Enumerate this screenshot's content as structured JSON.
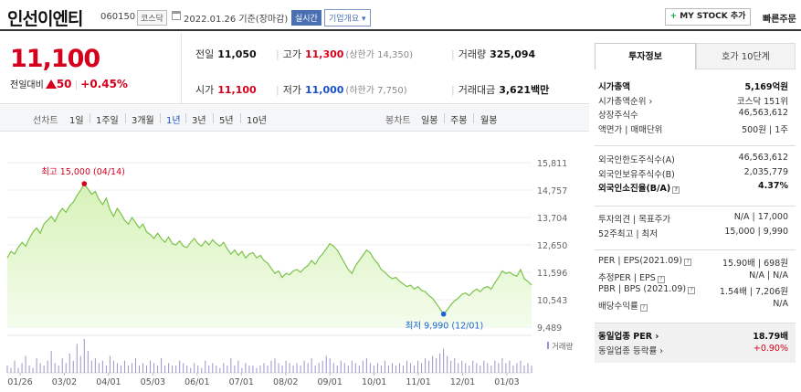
{
  "header": {
    "company": "인선이엔티",
    "code": "060150",
    "market": "코스닥",
    "date": "2022.01.26 기준(장마감)",
    "realtime": "실시간",
    "corp_info": "기업개요",
    "mystock_label": "MY STOCK 추가",
    "quick_order": "빠른주문"
  },
  "summary": {
    "price": "11,100",
    "change_label": "전일대비",
    "change_value": "50",
    "change_pct": "+0.45%",
    "prev_label": "전일",
    "prev_value": "11,050",
    "high_label": "고가",
    "high_value": "11,300",
    "upper_limit": "(상한가 14,350)",
    "volume_label": "거래량",
    "volume_value": "325,094",
    "open_label": "시가",
    "open_value": "11,100",
    "low_label": "저가",
    "low_value": "11,000",
    "lower_limit": "(하한가 7,750)",
    "amount_label": "거래대금",
    "amount_value": "3,621백만"
  },
  "periods": {
    "line_label": "선차트",
    "items": [
      "1일",
      "1주일",
      "3개월",
      "1년",
      "3년",
      "5년",
      "10년"
    ],
    "active": "1년",
    "candle_label": "봉차트",
    "candle_items": [
      "일봉",
      "주봉",
      "월봉"
    ]
  },
  "info": {
    "tab_active": "투자정보",
    "tab_other": "호가 10단계",
    "rows1": [
      {
        "k": "시가총액",
        "v": "5,169억원",
        "bold": true
      },
      {
        "k": "시가총액순위 ›",
        "v": "코스닥 151위"
      },
      {
        "k": "상장주식수",
        "v": "46,563,612"
      },
      {
        "k": "액면가 | 매매단위",
        "v": "500원 | 1주"
      }
    ],
    "rows2": [
      {
        "k": "외국인한도주식수(A)",
        "v": "46,563,612"
      },
      {
        "k": "외국인보유주식수(B)",
        "v": "2,035,779"
      },
      {
        "k": "외국인소진율(B/A)",
        "v": "4.37%",
        "bold": true,
        "q": true
      }
    ],
    "rows3": [
      {
        "k": "투자의견 | 목표주가",
        "v": "N/A | 17,000"
      },
      {
        "k": "52주최고 | 최저",
        "v": "15,000 | 9,990"
      }
    ],
    "rows4": [
      {
        "k": "PER | EPS(2021.09)",
        "v": "15.90배 | 698원",
        "q": true
      },
      {
        "k": "추정PER | EPS",
        "v": "N/A | N/A",
        "q": true
      },
      {
        "k": "PBR | BPS (2021.09)",
        "v": "1.54배 | 7,206원",
        "q": true
      },
      {
        "k": "배당수익률",
        "v": "N/A",
        "q": true
      }
    ],
    "rows5": [
      {
        "k": "동일업종 PER ›",
        "v": "18.79배",
        "bold": true
      },
      {
        "k": "동일업종 등락률 ›",
        "v": "+0.90%",
        "red": true
      }
    ]
  },
  "chart_data": {
    "type": "area",
    "y_ticks": [
      9489,
      10543,
      11596,
      12650,
      13704,
      14757,
      15811
    ],
    "ylim": [
      9489,
      15811
    ],
    "x_labels": [
      "01/26",
      "03/02",
      "04/01",
      "05/03",
      "06/01",
      "07/01",
      "08/02",
      "09/01",
      "10/01",
      "11/01",
      "12/01",
      "01/03"
    ],
    "high_annotation": "최고 15,000 (04/14)",
    "low_annotation": "최저 9,990 (12/01)",
    "volume_label": "거래량",
    "colors": {
      "line": "#7bc34a",
      "fill_top": "#d7f2b8",
      "fill_bottom": "#f4fcec",
      "volume": "#9b93c9",
      "high": "#d6001c",
      "low": "#1a64d6"
    },
    "series": [
      {
        "values": [
          12150,
          12400,
          12300,
          12550,
          12750,
          12600,
          12900,
          13150,
          13300,
          13100,
          13450,
          13600,
          13750,
          13550,
          13850,
          14050,
          13900,
          14150,
          14300,
          14550,
          14750,
          15000,
          14800,
          14600,
          14700,
          14400,
          14200,
          14450,
          14000,
          13750,
          14050,
          13850,
          13600,
          13450,
          13700,
          13500,
          13300,
          13450,
          13150,
          13050,
          12900,
          13100,
          12900,
          12750,
          12950,
          12700,
          12650,
          12800,
          12600,
          12550,
          12750,
          12900,
          12700,
          12600,
          12800,
          12650,
          12850,
          12700,
          12600,
          12750,
          12500,
          12300,
          12450,
          12250,
          12400,
          12150,
          12300,
          12350,
          12150,
          12250,
          12050,
          11950,
          11750,
          11550,
          11650,
          11400,
          11550,
          11500,
          11650,
          11700,
          11600,
          11750,
          11850,
          12050,
          11900,
          12150,
          12300,
          12500,
          12700,
          12600,
          12450,
          12200,
          11950,
          11700,
          11550,
          11850,
          12050,
          12250,
          12450,
          12350,
          12100,
          11950,
          11700,
          11600,
          11450,
          11350,
          11400,
          11250,
          11150,
          11050,
          11100,
          10950,
          11050,
          10900,
          10850,
          10700,
          10600,
          10400,
          10200,
          9990,
          10150,
          10350,
          10500,
          10600,
          10750,
          10800,
          10700,
          10850,
          10950,
          10850,
          11000,
          11050,
          10950,
          11200,
          11400,
          11650,
          11550,
          11600,
          11500,
          11450,
          11700,
          11350,
          11250,
          11100
        ]
      }
    ],
    "volume": [
      3,
      2,
      5,
      2,
      4,
      7,
      3,
      2,
      6,
      4,
      3,
      5,
      9,
      4,
      3,
      6,
      4,
      8,
      5,
      12,
      7,
      14,
      9,
      5,
      6,
      4,
      5,
      3,
      7,
      5,
      4,
      3,
      5,
      3,
      4,
      6,
      3,
      4,
      3,
      5,
      4,
      3,
      6,
      3,
      4,
      3,
      3,
      5,
      4,
      3,
      2,
      4,
      3,
      2,
      5,
      3,
      4,
      3,
      2,
      4,
      3,
      6,
      3,
      5,
      2,
      4,
      3,
      3,
      2,
      3,
      4,
      3,
      5,
      6,
      4,
      3,
      5,
      4,
      3,
      4,
      3,
      5,
      4,
      6,
      3,
      4,
      5,
      7,
      6,
      4,
      3,
      5,
      4,
      3,
      5,
      4,
      3,
      5,
      6,
      4,
      3,
      4,
      3,
      5,
      3,
      4,
      3,
      4,
      3,
      5,
      4,
      3,
      5,
      4,
      6,
      5,
      7,
      6,
      8,
      10,
      7,
      5,
      6,
      4,
      5,
      4,
      3,
      5,
      4,
      3,
      5,
      4,
      3,
      5,
      4,
      6,
      4,
      5,
      3,
      4,
      5,
      3,
      4,
      3
    ]
  }
}
